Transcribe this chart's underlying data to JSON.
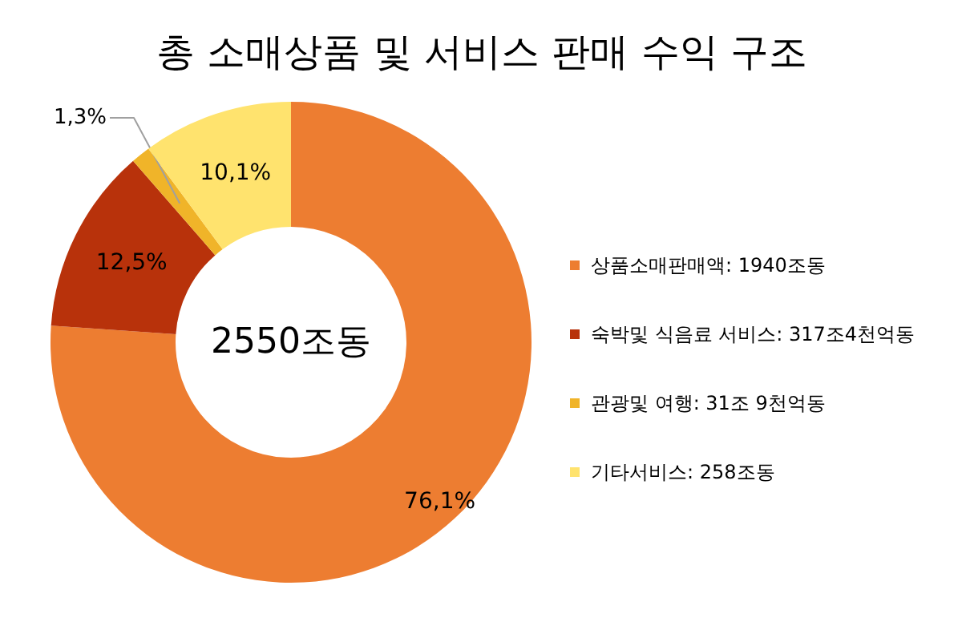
{
  "chart_data": {
    "type": "donut",
    "title": "총 소매상품 및 서비스 판매 수익 구조",
    "categories": [
      "상품소매판매액: 1940조동",
      "숙박및 식음료 서비스: 317조4천억동",
      "관광및 여행: 31조 9천억동",
      "기타서비스: 258조동"
    ],
    "values": [
      76.1,
      12.5,
      1.3,
      10.1
    ],
    "value_labels": [
      "76,1%",
      "12,5%",
      "1,3%",
      "10,1%"
    ],
    "colors": [
      "#ed7d31",
      "#b8320b",
      "#f0b429",
      "#ffe36e"
    ],
    "annotations": [
      "2550조동"
    ],
    "legend": "right"
  }
}
